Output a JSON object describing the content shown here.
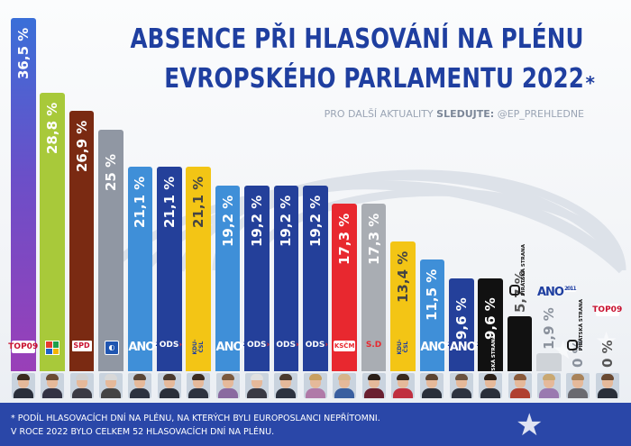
{
  "chart_data": {
    "type": "bar",
    "title_line1": "ABSENCE PŘI HLASOVÁNÍ NA PLÉNU",
    "title_line2": "EVROPSKÉHO PARLAMENTU 2022",
    "title_mark": "*",
    "follow": {
      "text": "PRO DALŠÍ AKTUALITY",
      "label": "SLEDUJTE:",
      "handle": "@EP_PREHLEDNE"
    },
    "footnote1": "* PODÍL HLASOVACÍCH DNÍ NA PLÉNU, NA KTERÝCH BYLI EUROPOSLANCI NEPŘÍTOMNI.",
    "footnote2": "V ROCE 2022 BYLO CELKEM 52 HLASOVACÍCH DNÍ NA PLÉNU.",
    "ylim": [
      0,
      36.5
    ],
    "values": [
      36.5,
      28.8,
      26.9,
      25,
      21.1,
      21.1,
      21.1,
      19.2,
      19.2,
      19.2,
      19.2,
      17.3,
      17.3,
      13.4,
      11.5,
      9.6,
      9.6,
      5.7,
      1.9,
      0,
      0
    ],
    "labels": [
      "36,5 %",
      "28,8 %",
      "26,9 %",
      "25 %",
      "21,1 %",
      "21,1 %",
      "21,1 %",
      "19,2 %",
      "19,2 %",
      "19,2 %",
      "19,2 %",
      "17,3 %",
      "17,3 %",
      "13,4 %",
      "11,5 %",
      "9,6 %",
      "9,6 %",
      "5,7 %",
      "1,9 %",
      "0 %",
      "0 %"
    ],
    "parties": [
      "TOP 09",
      "",
      "SPD",
      "",
      "ANO",
      "ODS",
      "KDU-ČSL",
      "ANO",
      "ODS",
      "ODS",
      "ODS",
      "KSČM",
      "S.D",
      "KDU-ČSL",
      "ANO",
      "ANO",
      "Pirátská strana",
      "Pirátská strana",
      "ANO",
      "Pirátská strana",
      "TOP 09"
    ],
    "colors": {
      "top09": "#7b3fb8",
      "green": "#a8c93a",
      "spd": "#7a2a12",
      "gray": "#9097a3",
      "ano": "#3f8fd8",
      "ods": "#24409a",
      "kdu": "#f3c515",
      "kscm": "#e8282f",
      "sd": "#a9adb3",
      "pirati": "#111111",
      "pirati_light": "#cfd3d8"
    },
    "logo_texts": {
      "top09": "TOP09",
      "spd": "SPD",
      "ano": "ANO",
      "ods": "ODS",
      "kdu": "KDU-ČSL",
      "kscm": "KSČM",
      "sd": "S.D",
      "pirati": "PIRÁTSKÁ STRANA"
    }
  }
}
